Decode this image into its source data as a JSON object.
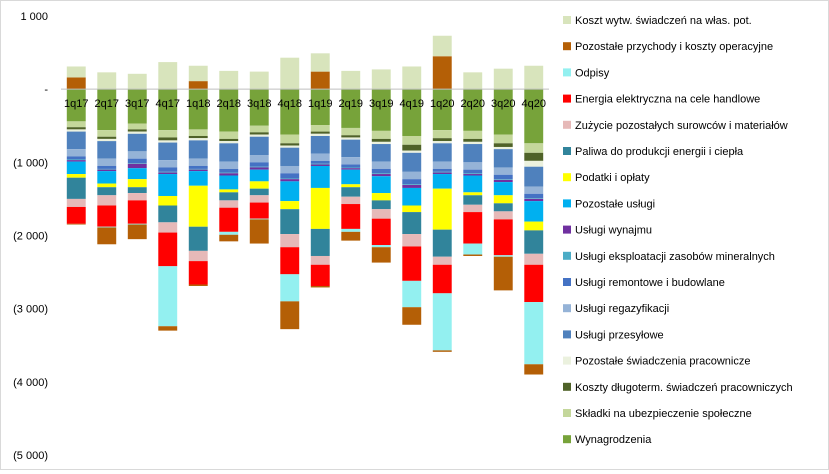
{
  "chart_data": {
    "type": "bar",
    "stacked": true,
    "title": "",
    "xlabel": "",
    "ylabel": "",
    "ylim": [
      -5000,
      1000
    ],
    "y_ticks": [
      {
        "value": 1000,
        "label": "1 000"
      },
      {
        "value": 0,
        "label": "-"
      },
      {
        "value": -1000,
        "label": "(1 000)"
      },
      {
        "value": -2000,
        "label": "(2 000)"
      },
      {
        "value": -3000,
        "label": "(3 000)"
      },
      {
        "value": -4000,
        "label": "(4 000)"
      },
      {
        "value": -5000,
        "label": "(5 000)"
      }
    ],
    "grid": false,
    "legend_position": "right",
    "categories": [
      "1q17",
      "2q17",
      "3q17",
      "4q17",
      "1q18",
      "2q18",
      "3q18",
      "4q18",
      "1q19",
      "2q19",
      "3q19",
      "4q19",
      "1q20",
      "2q20",
      "3q20",
      "4q20"
    ],
    "series": [
      {
        "name": "Wynagrodzenia",
        "color": "#77a33a",
        "values": [
          -440,
          -560,
          -470,
          -560,
          -550,
          -580,
          -500,
          -620,
          -490,
          -530,
          -570,
          -640,
          -560,
          -570,
          -620,
          -740
        ]
      },
      {
        "name": "Składki na ubezpieczenie społeczne",
        "color": "#c4d79b",
        "values": [
          -80,
          -90,
          -80,
          -100,
          -90,
          -100,
          -90,
          -120,
          -90,
          -100,
          -110,
          -120,
          -110,
          -110,
          -120,
          -130
        ]
      },
      {
        "name": "Koszty długoterm. świadczeń pracowniczych",
        "color": "#4f6228",
        "values": [
          -30,
          -30,
          -30,
          -40,
          -30,
          -30,
          -30,
          -30,
          -30,
          -30,
          -40,
          -80,
          -40,
          -40,
          -50,
          -110
        ]
      },
      {
        "name": "Pozostałe świadczenia pracownicze",
        "color": "#ebf1de",
        "values": [
          -30,
          -30,
          -30,
          -30,
          -30,
          -30,
          -30,
          -30,
          -30,
          -30,
          -30,
          -30,
          -30,
          -30,
          -30,
          -80
        ]
      },
      {
        "name": "Usługi przesyłowe",
        "color": "#4f81bd",
        "values": [
          -240,
          -240,
          -240,
          -240,
          -250,
          -250,
          -250,
          -250,
          -240,
          -240,
          -240,
          -260,
          -250,
          -250,
          -250,
          -270
        ]
      },
      {
        "name": "Usługi regazyfikacji",
        "color": "#95b3d7",
        "values": [
          -100,
          -100,
          -100,
          -100,
          -100,
          -100,
          -100,
          -100,
          -100,
          -100,
          -100,
          -100,
          -100,
          -100,
          -100,
          -100
        ]
      },
      {
        "name": "Usługi remontowe i budowlane",
        "color": "#4472c4",
        "values": [
          -40,
          -40,
          -60,
          -60,
          -40,
          -50,
          -60,
          -70,
          -40,
          -40,
          -60,
          -70,
          -40,
          -50,
          -60,
          -60
        ]
      },
      {
        "name": "Usługi eksploatacji zasobów mineralnych",
        "color": "#4bacc6",
        "values": [
          -10,
          -10,
          -10,
          -10,
          -10,
          -10,
          -10,
          -10,
          -10,
          -10,
          -10,
          -10,
          -10,
          -10,
          -10,
          -10
        ]
      },
      {
        "name": "Usługi wynajmu",
        "color": "#7030a0",
        "values": [
          -20,
          -20,
          -60,
          -20,
          -20,
          -30,
          -30,
          -30,
          -20,
          -20,
          -30,
          -40,
          -20,
          -20,
          -30,
          -30
        ]
      },
      {
        "name": "Pozostałe usługi",
        "color": "#00b0f0",
        "values": [
          -170,
          -170,
          -150,
          -300,
          -200,
          -190,
          -160,
          -270,
          -300,
          -200,
          -230,
          -240,
          -200,
          -230,
          -180,
          -280
        ]
      },
      {
        "name": "Podatki i opłaty",
        "color": "#ffff00",
        "values": [
          -50,
          -50,
          -110,
          -130,
          -560,
          -40,
          -100,
          -110,
          -560,
          -40,
          -100,
          -90,
          -560,
          -40,
          -110,
          -120
        ]
      },
      {
        "name": "Paliwa do produkcji energii i ciepła",
        "color": "#31849b",
        "values": [
          -290,
          -110,
          -80,
          -230,
          -330,
          -110,
          -90,
          -340,
          -370,
          -130,
          -120,
          -300,
          -370,
          -130,
          -110,
          -320
        ]
      },
      {
        "name": "Zużycie pozostałych surowców i materiałów",
        "color": "#e6b9b8",
        "values": [
          -110,
          -140,
          -100,
          -140,
          -140,
          -100,
          -100,
          -180,
          -120,
          -100,
          -130,
          -170,
          -110,
          -100,
          -110,
          -150
        ]
      },
      {
        "name": "Energia elektryczna na cele handlowe",
        "color": "#ff0000",
        "values": [
          -230,
          -290,
          -320,
          -460,
          -320,
          -330,
          -220,
          -370,
          -290,
          -340,
          -360,
          -470,
          -390,
          -430,
          -490,
          -510
        ]
      },
      {
        "name": "Odpisy",
        "color": "#93f0f0",
        "values": [
          0,
          -10,
          -10,
          -820,
          0,
          -40,
          -10,
          -370,
          0,
          -40,
          -30,
          -360,
          -780,
          -150,
          -20,
          -850
        ]
      },
      {
        "name": "Pozostałe przychody i koszty operacyjne",
        "color": "#b45f06",
        "values": [
          -10,
          -230,
          -200,
          -60,
          -20,
          -90,
          -330,
          -380,
          -20,
          -120,
          -210,
          -240,
          -20,
          -20,
          -460,
          -140
        ]
      },
      {
        "name": "Pozostałe przychody i koszty operacyjne",
        "color": "#b45f06",
        "values": [
          160,
          0,
          0,
          0,
          110,
          0,
          0,
          0,
          240,
          0,
          0,
          0,
          450,
          0,
          0,
          0
        ]
      },
      {
        "name": "Koszt wytw. świadczeń na włas. pot.",
        "color": "#d8e4bc",
        "values": [
          150,
          230,
          210,
          370,
          210,
          250,
          240,
          430,
          250,
          250,
          270,
          310,
          280,
          230,
          280,
          320
        ]
      }
    ]
  },
  "legend": {
    "items": [
      {
        "label": "Koszt wytw. świadczeń na włas. pot.",
        "color": "#d8e4bc"
      },
      {
        "label": "Pozostałe przychody i koszty operacyjne",
        "color": "#b45f06"
      },
      {
        "label": "Odpisy",
        "color": "#93f0f0"
      },
      {
        "label": "Energia elektryczna na cele handlowe",
        "color": "#ff0000"
      },
      {
        "label": "Zużycie pozostałych surowców i materiałów",
        "color": "#e6b9b8"
      },
      {
        "label": "Paliwa do produkcji energii i ciepła",
        "color": "#31849b"
      },
      {
        "label": "Podatki i opłaty",
        "color": "#ffff00"
      },
      {
        "label": "Pozostałe usługi",
        "color": "#00b0f0"
      },
      {
        "label": "Usługi wynajmu",
        "color": "#7030a0"
      },
      {
        "label": "Usługi eksploatacji zasobów mineralnych",
        "color": "#4bacc6"
      },
      {
        "label": "Usługi remontowe i budowlane",
        "color": "#4472c4"
      },
      {
        "label": "Usługi regazyfikacji",
        "color": "#95b3d7"
      },
      {
        "label": "Usługi przesyłowe",
        "color": "#4f81bd"
      },
      {
        "label": "Pozostałe świadczenia pracownicze",
        "color": "#ebf1de"
      },
      {
        "label": "Koszty długoterm. świadczeń pracowniczych",
        "color": "#4f6228"
      },
      {
        "label": "Składki na ubezpieczenie społeczne",
        "color": "#c4d79b"
      },
      {
        "label": "Wynagrodzenia",
        "color": "#77a33a"
      }
    ]
  }
}
